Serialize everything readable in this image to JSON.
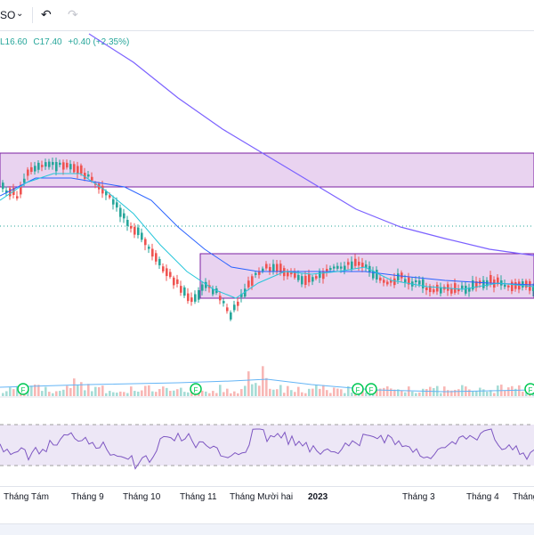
{
  "toolbar": {
    "symbol_fragment": "SO",
    "undo_icon": "undo-icon",
    "redo_icon": "redo-icon",
    "dropdown_icon": "chevron-down-icon"
  },
  "ohlc": {
    "low": "L16.60",
    "close": "C17.40",
    "change": "+0.40 (+2.35%)"
  },
  "colors": {
    "up": "#26a69a",
    "down": "#ef5350",
    "zone_fill": "#e9d3f0",
    "zone_border": "#7b1fa2",
    "ma_long": "#7b61ff",
    "ma_mid": "#2962ff",
    "ma_short": "#26c6da",
    "rsi": "#7e57c2"
  },
  "xaxis": {
    "labels": [
      "Tháng Tám",
      "Tháng 9",
      "Tháng 10",
      "Tháng 11",
      "Tháng Mười hai",
      "2023",
      "Tháng 3",
      "Tháng 4",
      "Tháng"
    ]
  },
  "event_marker_label": "F"
}
